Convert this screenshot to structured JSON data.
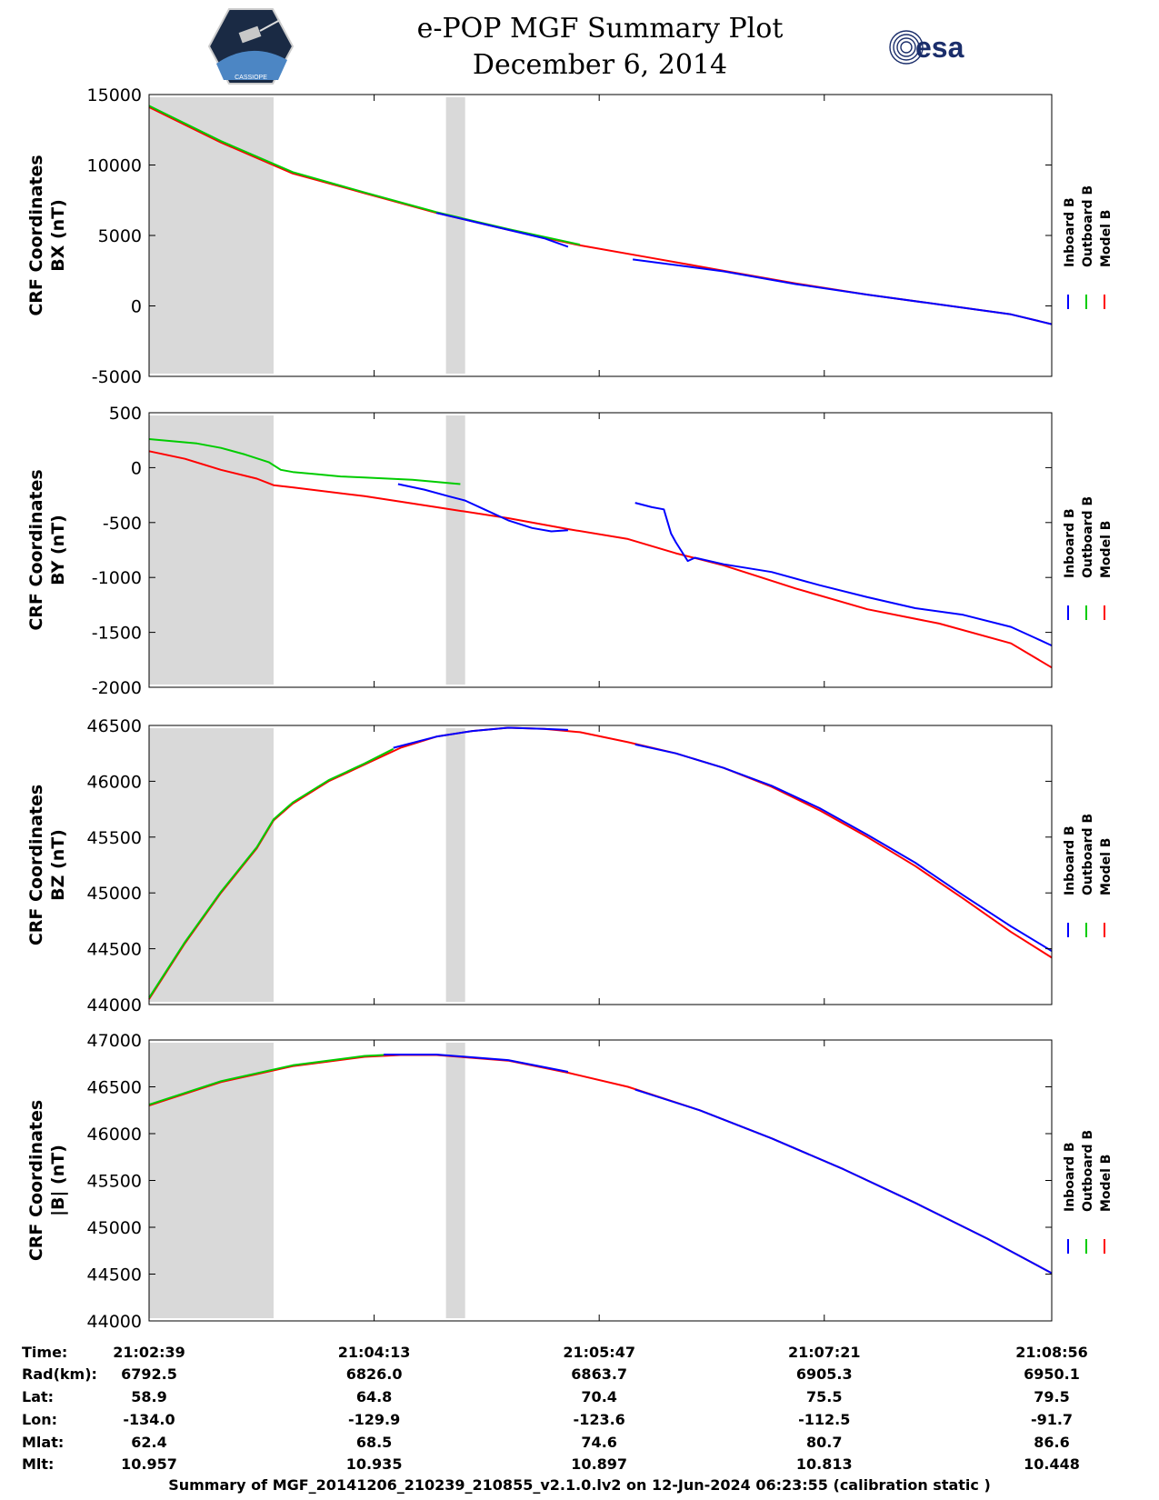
{
  "title": {
    "line1": "e-POP MGF Summary Plot",
    "line2": "December 6, 2014"
  },
  "logos": {
    "left": "cassiope-mission-patch",
    "left_text": "CASSIOPE",
    "right": "esa-logo",
    "right_text": "esa"
  },
  "colors": {
    "inboard": "#0000ff",
    "outboard": "#00cc00",
    "model": "#ff0000",
    "shade": "#d9d9d9"
  },
  "chart_data": [
    {
      "type": "line",
      "ylabel_line1": "CRF Coordinates",
      "ylabel_line2": "BX (nT)",
      "ylim": [
        -5000,
        15000
      ],
      "yticks": [
        -5000,
        0,
        5000,
        10000,
        15000
      ],
      "legend": [
        "Inboard B",
        "Outboard B",
        "Model B"
      ],
      "series": [
        {
          "name": "Model B",
          "x": [
            0,
            30,
            60,
            90,
            120,
            150,
            180,
            210,
            240,
            270,
            300,
            330,
            360,
            377
          ],
          "y": [
            14100,
            11600,
            9400,
            8000,
            6600,
            5400,
            4300,
            3400,
            2500,
            1600,
            800,
            100,
            -600,
            -1300
          ]
        },
        {
          "name": "Outboard B",
          "x": [
            0,
            30,
            60,
            90,
            120,
            150,
            180
          ],
          "y": [
            14200,
            11700,
            9500,
            8050,
            6650,
            5450,
            4350
          ]
        },
        {
          "name": "Inboard B",
          "x": [
            120,
            140,
            165,
            175
          ],
          "y": [
            6600,
            5800,
            4800,
            4200
          ]
        },
        {
          "name": "Inboard B",
          "x": [
            202,
            240,
            270,
            300,
            330,
            360,
            377
          ],
          "y": [
            3300,
            2450,
            1550,
            800,
            100,
            -600,
            -1300
          ]
        }
      ]
    },
    {
      "type": "line",
      "ylabel_line1": "CRF Coordinates",
      "ylabel_line2": "BY (nT)",
      "ylim": [
        -2000,
        500
      ],
      "yticks": [
        -2000,
        -1500,
        -1000,
        -500,
        0,
        500
      ],
      "legend": [
        "Inboard B",
        "Outboard B",
        "Model B"
      ],
      "series": [
        {
          "name": "Model B",
          "x": [
            0,
            15,
            30,
            45,
            52,
            60,
            90,
            120,
            150,
            175,
            200,
            220,
            240,
            270,
            300,
            330,
            360,
            377
          ],
          "y": [
            150,
            80,
            -20,
            -100,
            -160,
            -180,
            -260,
            -360,
            -460,
            -560,
            -650,
            -780,
            -890,
            -1100,
            -1290,
            -1420,
            -1600,
            -1820
          ]
        },
        {
          "name": "Outboard B",
          "x": [
            0,
            10,
            20,
            30,
            40,
            50,
            55,
            60,
            70,
            80,
            90,
            100,
            110,
            120,
            130
          ],
          "y": [
            260,
            240,
            220,
            180,
            120,
            50,
            -20,
            -40,
            -60,
            -80,
            -90,
            -100,
            -110,
            -130,
            -150
          ]
        },
        {
          "name": "Inboard B",
          "x": [
            104,
            115,
            125,
            132,
            140,
            150,
            160,
            168,
            175
          ],
          "y": [
            -150,
            -200,
            -260,
            -300,
            -380,
            -480,
            -550,
            -580,
            -570
          ]
        },
        {
          "name": "Inboard B",
          "x": [
            203,
            210,
            215,
            218,
            220,
            225,
            228,
            240,
            260,
            280,
            300,
            320,
            340,
            360,
            370,
            377
          ],
          "y": [
            -320,
            -360,
            -380,
            -600,
            -680,
            -850,
            -820,
            -880,
            -950,
            -1070,
            -1180,
            -1280,
            -1340,
            -1450,
            -1550,
            -1620
          ]
        }
      ]
    },
    {
      "type": "line",
      "ylabel_line1": "CRF Coordinates",
      "ylabel_line2": "BZ (nT)",
      "ylim": [
        44000,
        46500
      ],
      "yticks": [
        44000,
        44500,
        45000,
        45500,
        46000,
        46500
      ],
      "legend": [
        "Inboard B",
        "Outboard B",
        "Model B"
      ],
      "series": [
        {
          "name": "Model B",
          "x": [
            0,
            15,
            30,
            45,
            52,
            60,
            75,
            90,
            105,
            120,
            135,
            150,
            165,
            180,
            200,
            220,
            240,
            260,
            280,
            300,
            320,
            340,
            360,
            377
          ],
          "y": [
            44050,
            44550,
            45000,
            45400,
            45650,
            45800,
            46000,
            46150,
            46300,
            46400,
            46450,
            46480,
            46470,
            46440,
            46350,
            46250,
            46120,
            45950,
            45740,
            45500,
            45240,
            44950,
            44650,
            44420
          ]
        },
        {
          "name": "Outboard B",
          "x": [
            0,
            15,
            30,
            45,
            52,
            60,
            75,
            90,
            102
          ],
          "y": [
            44060,
            44560,
            45010,
            45410,
            45660,
            45810,
            46010,
            46160,
            46290
          ]
        },
        {
          "name": "Inboard B",
          "x": [
            102,
            120,
            135,
            150,
            165,
            175
          ],
          "y": [
            46300,
            46400,
            46450,
            46480,
            46470,
            46460
          ]
        },
        {
          "name": "Inboard B",
          "x": [
            203,
            220,
            240,
            260,
            280,
            300,
            320,
            340,
            360,
            377
          ],
          "y": [
            46330,
            46250,
            46120,
            45960,
            45760,
            45520,
            45270,
            44980,
            44700,
            44480
          ]
        }
      ]
    },
    {
      "type": "line",
      "ylabel_line1": "CRF Coordinates",
      "ylabel_line2": "|B| (nT)",
      "ylim": [
        44000,
        47000
      ],
      "yticks": [
        44000,
        44500,
        45000,
        45500,
        46000,
        46500,
        47000
      ],
      "legend": [
        "Inboard B",
        "Outboard B",
        "Model B"
      ],
      "series": [
        {
          "name": "Model B",
          "x": [
            0,
            30,
            60,
            90,
            105,
            120,
            150,
            175,
            200,
            230,
            260,
            290,
            320,
            350,
            377
          ],
          "y": [
            46300,
            46550,
            46720,
            46820,
            46840,
            46840,
            46780,
            46650,
            46500,
            46250,
            45950,
            45620,
            45260,
            44880,
            44510
          ]
        },
        {
          "name": "Outboard B",
          "x": [
            0,
            30,
            60,
            90,
            98
          ],
          "y": [
            46310,
            46560,
            46730,
            46830,
            46840
          ]
        },
        {
          "name": "Inboard B",
          "x": [
            98,
            120,
            150,
            175
          ],
          "y": [
            46845,
            46845,
            46785,
            46660
          ]
        },
        {
          "name": "Inboard B",
          "x": [
            203,
            230,
            260,
            290,
            320,
            350,
            377
          ],
          "y": [
            46470,
            46250,
            45950,
            45620,
            45260,
            44880,
            44510
          ]
        }
      ]
    }
  ],
  "shaded_regions": [
    [
      0,
      52
    ],
    [
      124,
      132
    ]
  ],
  "ephemeris": {
    "labels": [
      "Time:",
      "Rad(km):",
      "Lat:",
      "Lon:",
      "Mlat:",
      "Mlt:"
    ],
    "columns": [
      {
        "time": "21:02:39",
        "rad": "6792.5",
        "lat": "58.9",
        "lon": "-134.0",
        "mlat": "62.4",
        "mlt": "10.957"
      },
      {
        "time": "21:04:13",
        "rad": "6826.0",
        "lat": "64.8",
        "lon": "-129.9",
        "mlat": "68.5",
        "mlt": "10.935"
      },
      {
        "time": "21:05:47",
        "rad": "6863.7",
        "lat": "70.4",
        "lon": "-123.6",
        "mlat": "74.6",
        "mlt": "10.897"
      },
      {
        "time": "21:07:21",
        "rad": "6905.3",
        "lat": "75.5",
        "lon": "-112.5",
        "mlat": "80.7",
        "mlt": "10.813"
      },
      {
        "time": "21:08:56",
        "rad": "6950.1",
        "lat": "79.5",
        "lon": "-91.7",
        "mlat": "86.6",
        "mlt": "10.448"
      }
    ]
  },
  "footer": "Summary of MGF_20141206_210239_210855_v2.1.0.lv2 on 12-Jun-2024 06:23:55 (calibration static )"
}
